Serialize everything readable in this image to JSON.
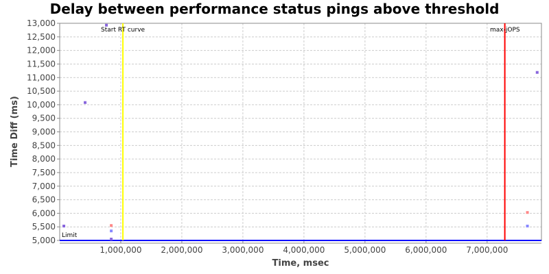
{
  "chart_data": {
    "type": "scatter",
    "title": "Delay between performance status pings above threshold",
    "xlabel": "Time, msec",
    "ylabel": "Time Diff (ms)",
    "xlim": [
      0,
      7890000
    ],
    "ylim": [
      5000,
      13000
    ],
    "grid": true,
    "x_ticks": [
      "1,000,000",
      "2,000,000",
      "3,000,000",
      "4,000,000",
      "5,000,000",
      "6,000,000",
      "7,000,000"
    ],
    "x_tick_values": [
      1000000,
      2000000,
      3000000,
      4000000,
      5000000,
      6000000,
      7000000
    ],
    "y_ticks": [
      "5,000",
      "5,500",
      "6,000",
      "6,500",
      "7,000",
      "7,500",
      "8,000",
      "8,500",
      "9,000",
      "9,500",
      "10,000",
      "10,500",
      "11,000",
      "11,500",
      "12,000",
      "12,500",
      "13,000"
    ],
    "y_tick_values": [
      5000,
      5500,
      6000,
      6500,
      7000,
      7500,
      8000,
      8500,
      9000,
      9500,
      10000,
      10500,
      11000,
      11500,
      12000,
      12500,
      13000
    ],
    "points": [
      {
        "x": 68000,
        "y": 5530,
        "color": "#8866dd"
      },
      {
        "x": 416000,
        "y": 10080,
        "color": "#8866dd"
      },
      {
        "x": 765000,
        "y": 12930,
        "color": "#8866dd"
      },
      {
        "x": 844000,
        "y": 5550,
        "color": "#ff8888"
      },
      {
        "x": 844000,
        "y": 5350,
        "color": "#8888ff"
      },
      {
        "x": 844000,
        "y": 5050,
        "color": "#8866dd"
      },
      {
        "x": 7820000,
        "y": 11190,
        "color": "#8866dd"
      },
      {
        "x": 7660000,
        "y": 6030,
        "color": "#ff8888"
      },
      {
        "x": 7660000,
        "y": 5530,
        "color": "#8888ff"
      }
    ],
    "markers": [
      {
        "label": "Start RT curve",
        "x": 1035000,
        "color": "#ffff00"
      },
      {
        "label": "max-jOPS",
        "x": 7290000,
        "color": "#ff0000"
      }
    ],
    "threshold": {
      "label": "Limit",
      "y": 5000,
      "color": "#0000ff"
    }
  }
}
